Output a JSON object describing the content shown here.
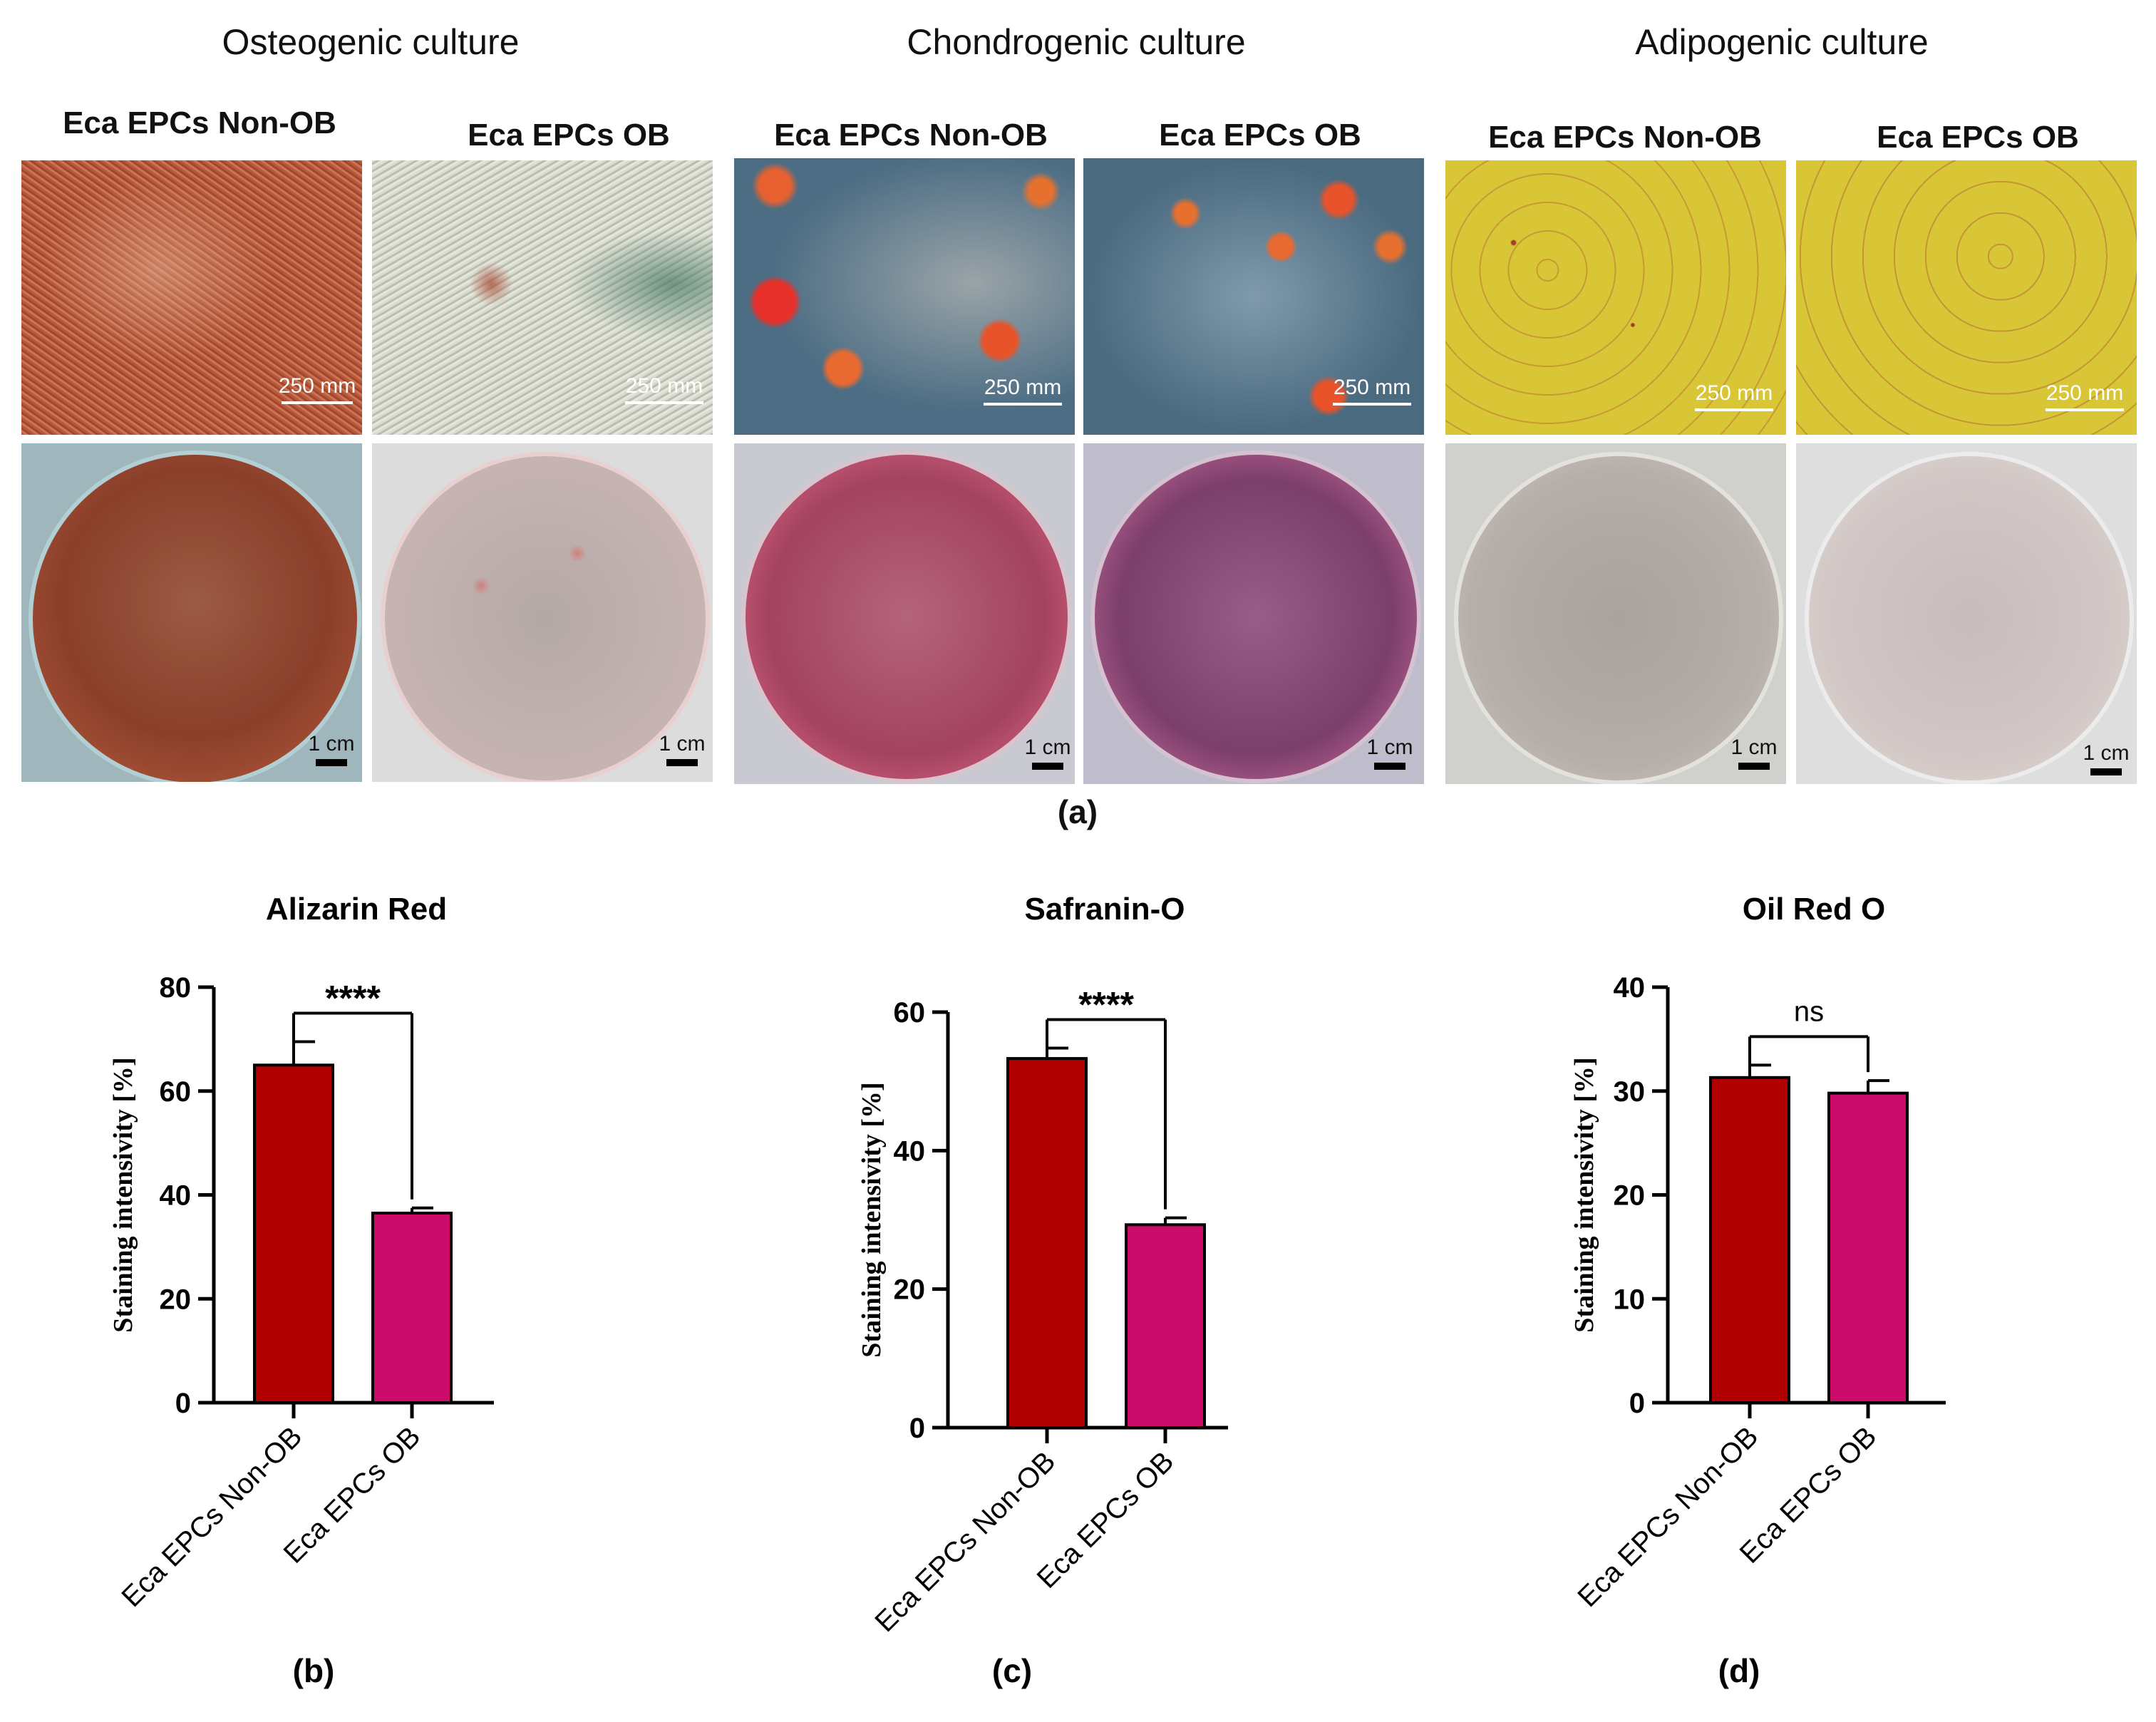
{
  "figure_a": {
    "culture_titles": [
      "Osteogenic culture",
      "Chondrogenic culture",
      "Adipogenic culture"
    ],
    "group_labels": [
      "Eca EPCs Non-OB",
      "Eca EPCs OB"
    ],
    "scale_micro": "250 mm",
    "scale_macro": "1 cm",
    "panel_label": "(a)"
  },
  "colors": {
    "non_ob": "#b00000",
    "ob": "#cc0c6a",
    "alizarin_micro": "#b85a40",
    "safranin_bg": "#4e6f86",
    "oilred_bg": "#d8c738"
  },
  "chart_data": [
    {
      "type": "bar",
      "title": "Alizarin  Red",
      "panel_label": "(b)",
      "ylabel": "Staining intensivity [%]",
      "categories": [
        "Eca EPCs Non-OB",
        "Eca EPCs OB"
      ],
      "values": [
        65,
        36.5
      ],
      "errors": [
        4.5,
        1
      ],
      "ylim": [
        0,
        80
      ],
      "yticks": [
        0,
        20,
        40,
        60,
        80
      ],
      "significance": "****"
    },
    {
      "type": "bar",
      "title": "Safranin-O",
      "panel_label": "(c)",
      "ylabel": "Staining intensivity [%]",
      "categories": [
        "Eca EPCs Non-OB",
        "Eca EPCs OB"
      ],
      "values": [
        53.3,
        29.3
      ],
      "errors": [
        1.5,
        1
      ],
      "ylim": [
        0,
        60
      ],
      "yticks": [
        0,
        20,
        40,
        60
      ],
      "significance": "****"
    },
    {
      "type": "bar",
      "title": "Oil  Red O",
      "panel_label": "(d)",
      "ylabel": "Staining intensivity [%]",
      "categories": [
        "Eca EPCs Non-OB",
        "Eca EPCs OB"
      ],
      "values": [
        31.3,
        29.8
      ],
      "errors": [
        1.2,
        1.2
      ],
      "ylim": [
        0,
        40
      ],
      "yticks": [
        0,
        10,
        20,
        30,
        40
      ],
      "significance": "ns"
    }
  ]
}
